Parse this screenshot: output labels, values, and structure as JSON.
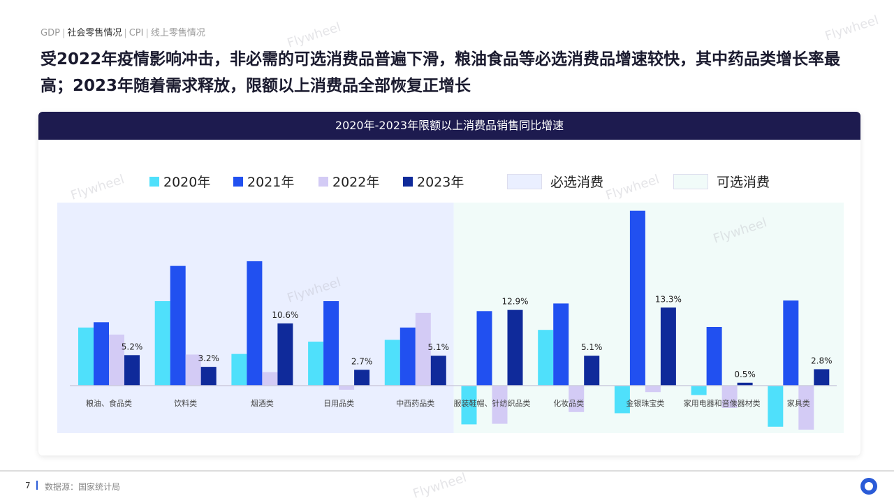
{
  "nav": {
    "items": [
      "GDP",
      "社会零售情况",
      "CPI",
      "线上零售情况"
    ],
    "active": 1
  },
  "headline": "受2022年疫情影响冲击，非必需的可选消费品普遍下滑，粮油食品等必选消费品增速较快，其中药品类增长率最高；2023年随着需求释放，限额以上消费品全部恢复正增长",
  "watermark": "Flywheel",
  "chart_data": {
    "type": "bar",
    "title": "2020年-2023年限额以上消费品销售同比增速",
    "categories": [
      "粮油、食品类",
      "饮料类",
      "烟酒类",
      "日用品类",
      "中西药品类",
      "服装鞋帽、针纺织品类",
      "化妆品类",
      "金银珠宝类",
      "家用电器和音像器材类",
      "家具类"
    ],
    "series": [
      {
        "name": "2020年",
        "color": "#4fe0fb",
        "values": [
          9.9,
          14.4,
          5.4,
          7.5,
          7.8,
          -6.6,
          9.5,
          -4.7,
          -1.6,
          -7.0
        ]
      },
      {
        "name": "2021年",
        "color": "#2150f0",
        "values": [
          10.8,
          20.4,
          21.2,
          14.4,
          9.9,
          12.7,
          14.0,
          29.8,
          10.0,
          14.5
        ]
      },
      {
        "name": "2022年",
        "color": "#d3cbf5",
        "values": [
          8.7,
          5.3,
          2.3,
          -0.7,
          12.4,
          -6.5,
          -4.5,
          -1.1,
          -3.8,
          -7.5
        ]
      },
      {
        "name": "2023年",
        "color": "#0f2a9a",
        "values": [
          5.2,
          3.2,
          10.6,
          2.7,
          5.1,
          12.9,
          5.1,
          13.3,
          0.5,
          2.8
        ]
      }
    ],
    "data_labels_2023": [
      "5.2%",
      "3.2%",
      "10.6%",
      "2.7%",
      "5.1%",
      "12.9%",
      "5.1%",
      "13.3%",
      "0.5%",
      "2.8%"
    ],
    "groups": [
      {
        "name": "必选消费",
        "color": "#eaefff",
        "categories": 5
      },
      {
        "name": "可选消费",
        "color": "#f1fbf9",
        "categories": 5
      }
    ],
    "legend": "top",
    "grid": false
  },
  "footer": {
    "page": "7",
    "source": "数据源：国家统计局"
  }
}
